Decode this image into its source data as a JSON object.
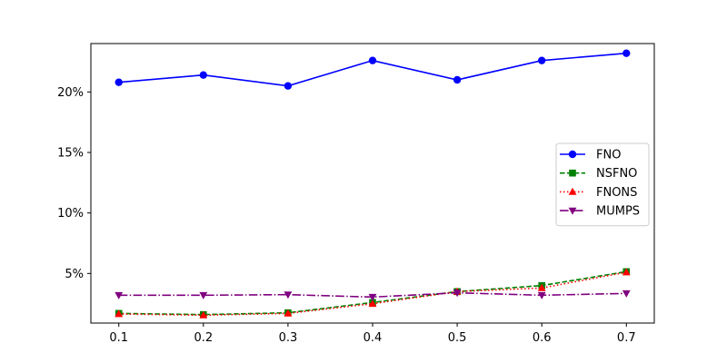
{
  "chart_data": {
    "type": "line",
    "title": "",
    "xlabel": "",
    "ylabel": "",
    "x": [
      0.1,
      0.2,
      0.3,
      0.4,
      0.5,
      0.6,
      0.7
    ],
    "x_ticks": [
      "0.1",
      "0.2",
      "0.3",
      "0.4",
      "0.5",
      "0.6",
      "0.7"
    ],
    "y_ticks": [
      {
        "value": 5,
        "label": "5%"
      },
      {
        "value": 10,
        "label": "10%"
      },
      {
        "value": 15,
        "label": "15%"
      },
      {
        "value": 20,
        "label": "20%"
      }
    ],
    "xlim": [
      0.067,
      0.733
    ],
    "ylim": [
      0.9,
      24.0
    ],
    "grid": false,
    "legend_position": "center-right",
    "series": [
      {
        "name": "FNO",
        "color": "#0000ff",
        "marker": "circle",
        "linestyle": "solid",
        "values": [
          20.8,
          21.4,
          20.5,
          22.6,
          21.0,
          22.6,
          23.2
        ]
      },
      {
        "name": "NSFNO",
        "color": "#008000",
        "marker": "square",
        "linestyle": "dashed",
        "values": [
          1.7,
          1.6,
          1.75,
          2.6,
          3.5,
          4.0,
          5.15
        ]
      },
      {
        "name": "FNONS",
        "color": "#ff0000",
        "marker": "triangle-up",
        "linestyle": "dotted",
        "values": [
          1.65,
          1.55,
          1.7,
          2.5,
          3.5,
          3.8,
          5.1
        ]
      },
      {
        "name": "MUMPS",
        "color": "#800080",
        "marker": "triangle-down",
        "linestyle": "dashdot",
        "values": [
          3.2,
          3.2,
          3.25,
          3.05,
          3.4,
          3.2,
          3.35
        ]
      }
    ]
  }
}
